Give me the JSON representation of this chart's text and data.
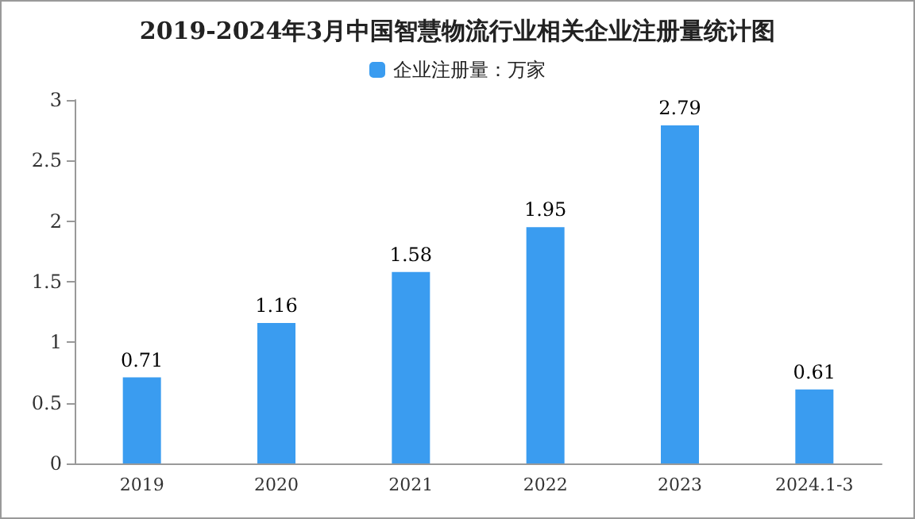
{
  "chart_data": {
    "type": "bar",
    "title": "2019-2024年3月中国智慧物流行业相关企业注册量统计图",
    "categories": [
      "2019",
      "2020",
      "2021",
      "2022",
      "2023",
      "2024.1-3"
    ],
    "series": [
      {
        "name": "企业注册量：万家",
        "color": "#3a9cf0",
        "values": [
          0.71,
          1.16,
          1.58,
          1.95,
          2.79,
          0.61
        ]
      }
    ],
    "ylim": [
      0,
      3
    ],
    "yticks": [
      0,
      0.5,
      1,
      1.5,
      2,
      2.5,
      3
    ],
    "grid": false,
    "legend": "top",
    "data_labels": true
  }
}
